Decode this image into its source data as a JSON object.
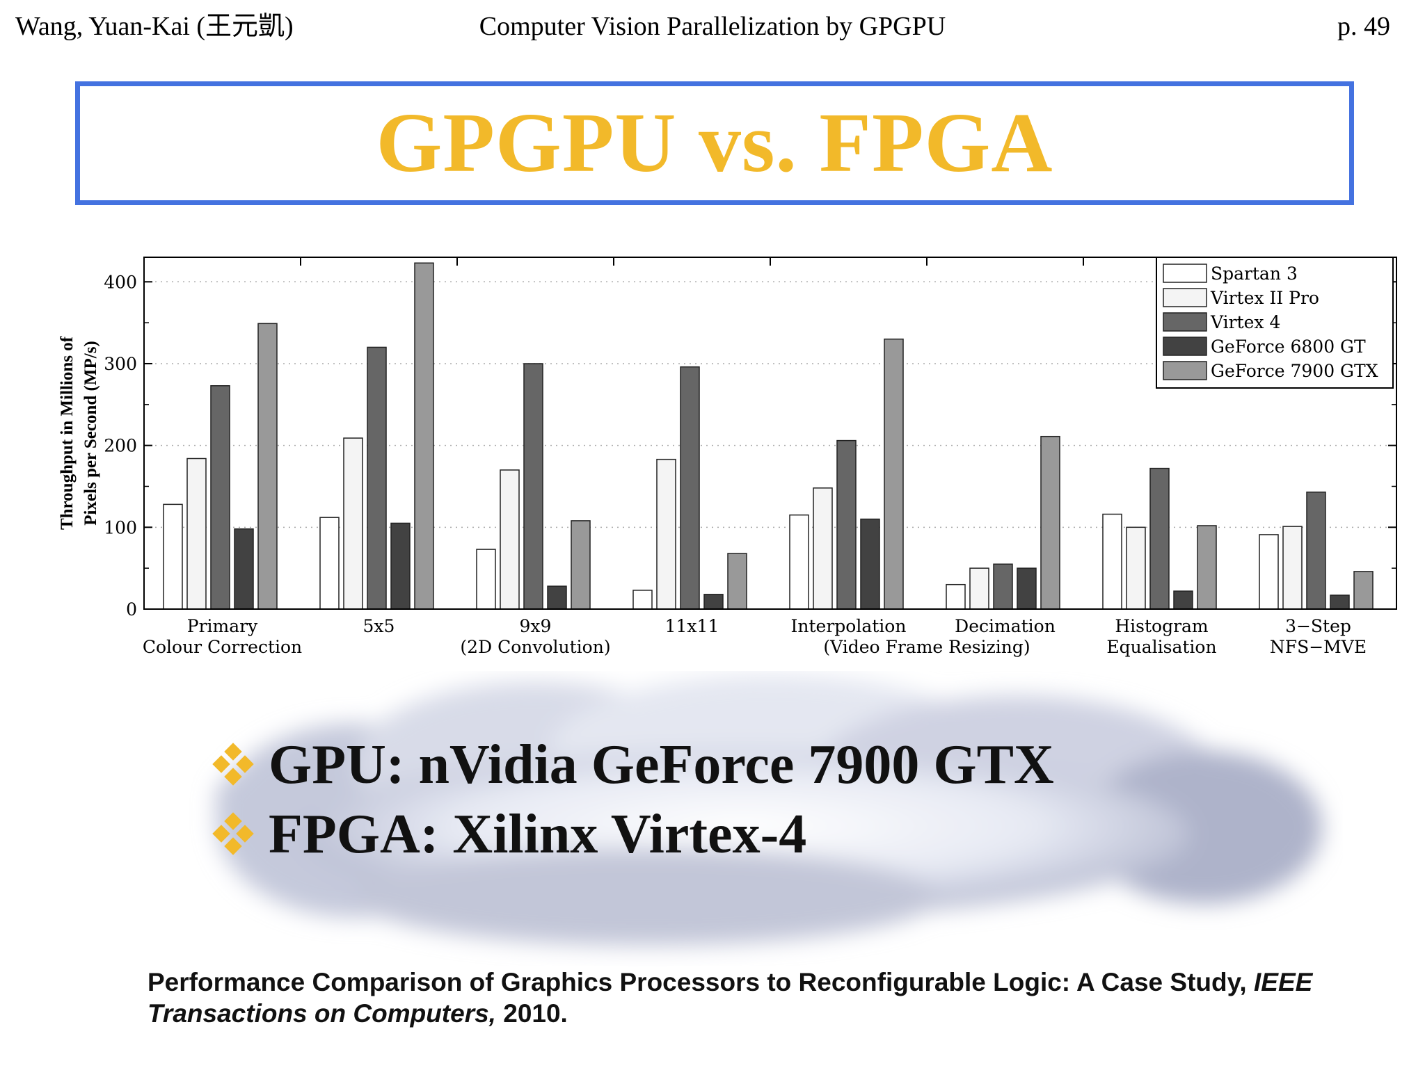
{
  "header": {
    "left": "Wang, Yuan-Kai (王元凱)",
    "center": "Computer Vision Parallelization by GPGPU",
    "right": "p. 49"
  },
  "title": "GPGPU vs. FPGA",
  "colors": {
    "title": "#f2b92a",
    "title_border": "#4472e0",
    "bullet_diamond": "#f2b92a",
    "spartan3": "#ffffff",
    "virtex2pro": "#f4f4f4",
    "virtex4": "#666666",
    "geforce6800": "#424242",
    "geforce7900": "#999999"
  },
  "chart_data": {
    "type": "bar",
    "ylabel": [
      "Throughput in Millions of",
      "Pixels per Second (MP/s)"
    ],
    "ylim": [
      0,
      430
    ],
    "yticks": [
      0,
      100,
      200,
      300,
      400
    ],
    "grid": "dotted horizontal",
    "legend_position": "top-right",
    "categories": [
      [
        "Primary",
        "Colour Correction"
      ],
      [
        "5x5",
        ""
      ],
      [
        "9x9",
        "(2D Convolution)"
      ],
      [
        "11x11",
        ""
      ],
      [
        "Interpolation",
        ""
      ],
      [
        "Decimation",
        ""
      ],
      [
        "Histogram",
        "Equalisation"
      ],
      [
        "3−Step",
        "NFS−MVE"
      ]
    ],
    "group_label": "(Video Frame Resizing)",
    "series": [
      {
        "name": "Spartan 3",
        "values": [
          128,
          112,
          73,
          23,
          115,
          30,
          116,
          91
        ]
      },
      {
        "name": "Virtex II Pro",
        "values": [
          184,
          209,
          170,
          183,
          148,
          50,
          100,
          101
        ]
      },
      {
        "name": "Virtex 4",
        "values": [
          273,
          320,
          300,
          296,
          206,
          55,
          172,
          143
        ]
      },
      {
        "name": "GeForce 6800 GT",
        "values": [
          98,
          105,
          28,
          18,
          110,
          50,
          22,
          17
        ]
      },
      {
        "name": "GeForce 7900 GTX",
        "values": [
          349,
          423,
          108,
          68,
          330,
          211,
          102,
          46
        ]
      }
    ]
  },
  "bullets": [
    {
      "text": "GPU: nVidia GeForce 7900 GTX"
    },
    {
      "text": "FPGA: Xilinx Virtex-4"
    }
  ],
  "citation": {
    "lead": "Performance Comparison of Graphics Processors to Reconfigurable Logic: A Case Study, ",
    "journal": "IEEE Transactions on Computers,",
    "year": " 2010."
  }
}
